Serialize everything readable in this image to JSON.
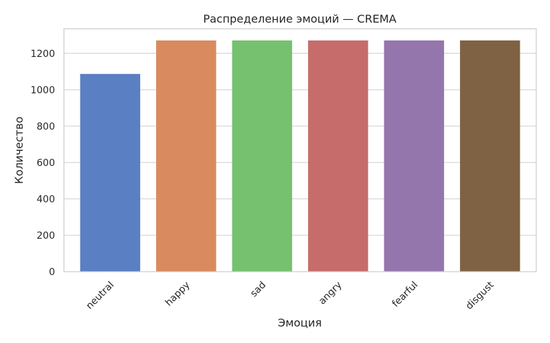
{
  "chart_data": {
    "type": "bar",
    "title": "Распределение эмоций — CREMA",
    "xlabel": "Эмоция",
    "ylabel": "Количество",
    "categories": [
      "neutral",
      "happy",
      "sad",
      "angry",
      "fearful",
      "disgust"
    ],
    "values": [
      1087,
      1271,
      1271,
      1271,
      1271,
      1271
    ],
    "colors": [
      "#5a7fc2",
      "#d98a5e",
      "#76c16f",
      "#c66d6b",
      "#9476ad",
      "#7f6244"
    ],
    "ylim": [
      0,
      1335
    ],
    "yticks": [
      0,
      200,
      400,
      600,
      800,
      1000,
      1200
    ],
    "grid": true,
    "legend": "none"
  }
}
